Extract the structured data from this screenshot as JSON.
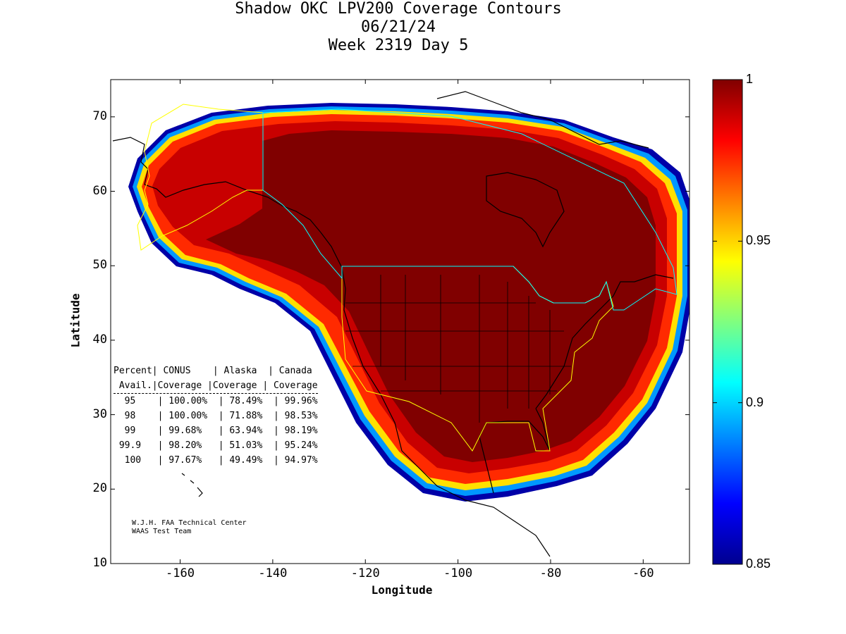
{
  "title": {
    "line1": "Shadow OKC LPV200 Coverage Contours",
    "line2": "06/21/24",
    "line3": "Week 2319 Day 5"
  },
  "axes": {
    "xlabel": "Longitude",
    "ylabel": "Latitude",
    "xticks": [
      "-160",
      "-140",
      "-120",
      "-100",
      "-80",
      "-60"
    ],
    "yticks": [
      "70",
      "60",
      "50",
      "40",
      "30",
      "20",
      "10"
    ],
    "xlim": [
      -175,
      -50
    ],
    "ylim": [
      10,
      75
    ]
  },
  "colorbar": {
    "ticks": [
      "1",
      "0.95",
      "0.9",
      "0.85"
    ],
    "range": [
      0.85,
      1.0
    ],
    "colormap": "jet"
  },
  "stats_table": {
    "headers": [
      "Percent",
      "CONUS",
      "Alaska",
      "Canada"
    ],
    "subheaders": [
      "Avail.",
      "Coverage",
      "Coverage",
      "Coverage"
    ],
    "rows": [
      [
        "95",
        "100.00%",
        "78.49%",
        "99.96%"
      ],
      [
        "98",
        "100.00%",
        "71.88%",
        "98.53%"
      ],
      [
        "99",
        "99.68%",
        "63.94%",
        "98.19%"
      ],
      [
        "99.9",
        "98.20%",
        "51.03%",
        "95.24%"
      ],
      [
        "100",
        "97.67%",
        "49.49%",
        "94.97%"
      ]
    ]
  },
  "credit": {
    "line1": "W.J.H. FAA Technical Center",
    "line2": "WAAS Test Team"
  },
  "colors": {
    "coverage_core": "#800000",
    "boundary_conus": "#ffff00",
    "boundary_canada": "#00ffff",
    "coast": "#000000"
  }
}
